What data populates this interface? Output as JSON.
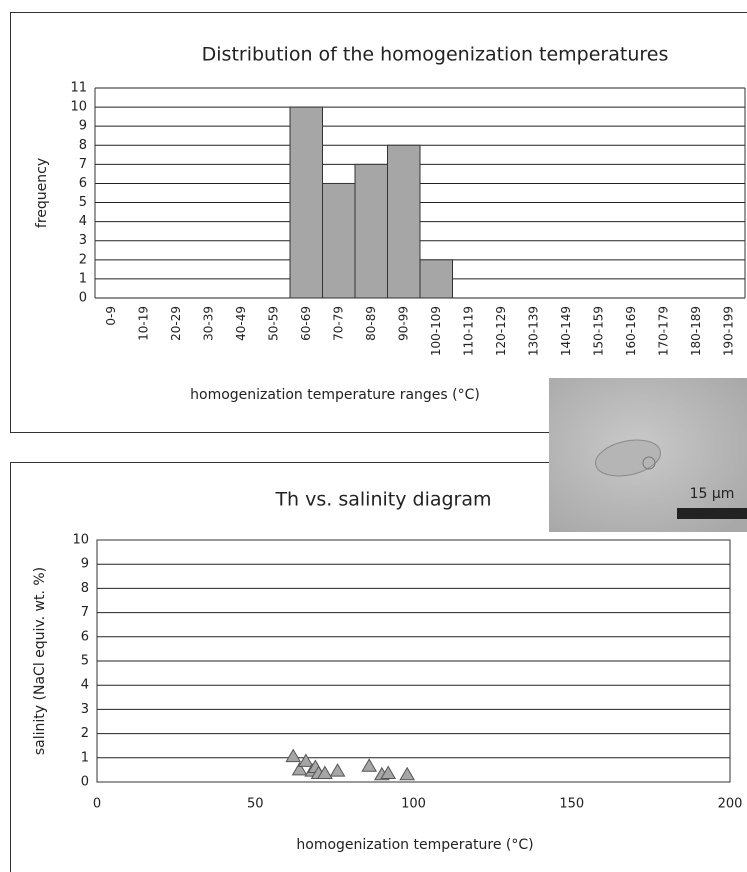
{
  "chart_data": [
    {
      "type": "bar",
      "title": "Distribution of the homogenization temperatures",
      "y_label": "frequency",
      "x_label": "homogenization temperature ranges (°C)",
      "categories": [
        "0-9",
        "10-19",
        "20-29",
        "30-39",
        "40-49",
        "50-59",
        "60-69",
        "70-79",
        "80-89",
        "90-99",
        "100-109",
        "110-119",
        "120-129",
        "130-139",
        "140-149",
        "150-159",
        "160-169",
        "170-179",
        "180-189",
        "190-199"
      ],
      "values": [
        0,
        0,
        0,
        0,
        0,
        0,
        10,
        6,
        7,
        8,
        2,
        0,
        0,
        0,
        0,
        0,
        0,
        0,
        0,
        0
      ],
      "color": "#a6a6a6",
      "ylim": [
        0,
        11
      ],
      "yticks": [
        0,
        1,
        2,
        3,
        4,
        5,
        6,
        7,
        8,
        9,
        10,
        11
      ],
      "grid": true
    },
    {
      "type": "scatter",
      "title": "Th vs. salinity diagram",
      "y_label": "salinity (NaCl equiv. wt. %)",
      "x_label": "homogenization temperature (°C)",
      "x": [
        62,
        64,
        66,
        68,
        69,
        70,
        72,
        76,
        86,
        90,
        92,
        98
      ],
      "values": [
        1.05,
        0.5,
        0.85,
        0.45,
        0.6,
        0.35,
        0.35,
        0.45,
        0.65,
        0.3,
        0.35,
        0.3
      ],
      "color": "#a6a6a6",
      "xlim": [
        0,
        200
      ],
      "xticks": [
        0,
        50,
        100,
        150,
        200
      ],
      "ylim": [
        0,
        10
      ],
      "yticks": [
        0,
        1,
        2,
        3,
        4,
        5,
        6,
        7,
        8,
        9,
        10
      ],
      "grid": true
    }
  ],
  "inset": {
    "scale_label": "15 µm"
  }
}
